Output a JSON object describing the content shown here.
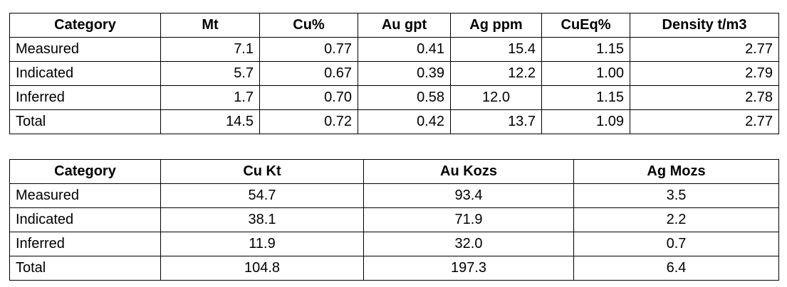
{
  "table1": {
    "header": [
      "Category",
      "Mt",
      "Cu%",
      "Au gpt",
      "Ag ppm",
      "CuEq%",
      "Density t/m3"
    ],
    "rows": [
      [
        "Measured",
        "7.1",
        "0.77",
        "0.41",
        "15.4",
        "1.15",
        "2.77"
      ],
      [
        "Indicated",
        "5.7",
        "0.67",
        "0.39",
        "12.2",
        "1.00",
        "2.79"
      ],
      [
        "Inferred",
        "1.7",
        "0.70",
        "0.58",
        "12.0",
        "1.15",
        "2.78"
      ],
      [
        "Total",
        "14.5",
        "0.72",
        "0.42",
        "13.7",
        "1.09",
        "2.77"
      ]
    ]
  },
  "table2": {
    "header": [
      "Category",
      "Cu Kt",
      "Au Kozs",
      "Ag Mozs"
    ],
    "rows": [
      [
        "Measured",
        "54.7",
        "93.4",
        "3.5"
      ],
      [
        "Indicated",
        "38.1",
        "71.9",
        "2.2"
      ],
      [
        "Inferred",
        "11.9",
        "32.0",
        "0.7"
      ],
      [
        "Total",
        "104.8",
        "197.3",
        "6.4"
      ]
    ]
  }
}
